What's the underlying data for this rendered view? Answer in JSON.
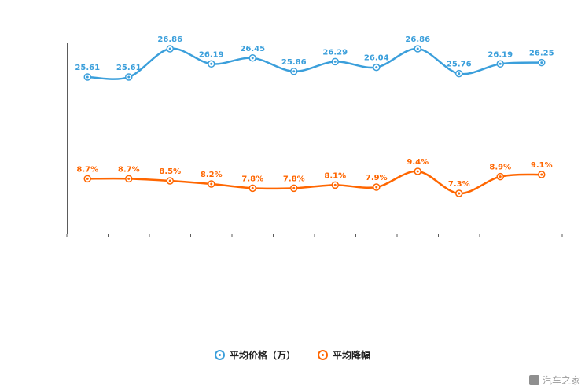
{
  "chart_data": {
    "type": "line",
    "x_labels": [],
    "series": [
      {
        "name": "平均价格（万）",
        "color": "#3b9fdb",
        "values": [
          25.61,
          25.61,
          26.86,
          26.19,
          26.45,
          25.86,
          26.29,
          26.04,
          26.86,
          25.76,
          26.19,
          26.25
        ],
        "labels": [
          "25.61",
          "25.61",
          "26.86",
          "26.19",
          "26.45",
          "25.86",
          "26.29",
          "26.04",
          "26.86",
          "25.76",
          "26.19",
          "26.25"
        ]
      },
      {
        "name": "平均降幅",
        "color": "#ff6600",
        "values": [
          8.7,
          8.7,
          8.5,
          8.2,
          7.8,
          7.8,
          8.1,
          7.9,
          9.4,
          7.3,
          8.9,
          9.1
        ],
        "labels": [
          "8.7%",
          "8.7%",
          "8.5%",
          "8.2%",
          "7.8%",
          "7.8%",
          "8.1%",
          "7.9%",
          "9.4%",
          "7.3%",
          "8.9%",
          "9.1%"
        ]
      }
    ],
    "legend_position": "bottom",
    "axis_color": "#5b5b5b",
    "grid": "off"
  },
  "watermark": {
    "brand": "汽车之家"
  }
}
